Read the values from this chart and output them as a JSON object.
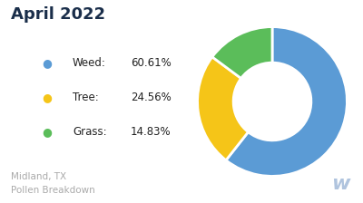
{
  "title": "April 2022",
  "subtitle": "Midland, TX\nPollen Breakdown",
  "labels": [
    "Weed",
    "Tree",
    "Grass"
  ],
  "values": [
    60.61,
    24.56,
    14.83
  ],
  "colors": [
    "#5B9BD5",
    "#F5C518",
    "#5BBD5A"
  ],
  "background_color": "#ffffff",
  "title_color": "#1a2e4a",
  "subtitle_color": "#aaaaaa",
  "watermark_color": "#b0c4de",
  "startangle": 90,
  "legend_items": [
    {
      "label": "Weed:",
      "pct": "60.61%"
    },
    {
      "label": "Tree:",
      "pct": "24.56%"
    },
    {
      "label": "Grass:",
      "pct": "14.83%"
    }
  ],
  "donut_width": 0.48
}
